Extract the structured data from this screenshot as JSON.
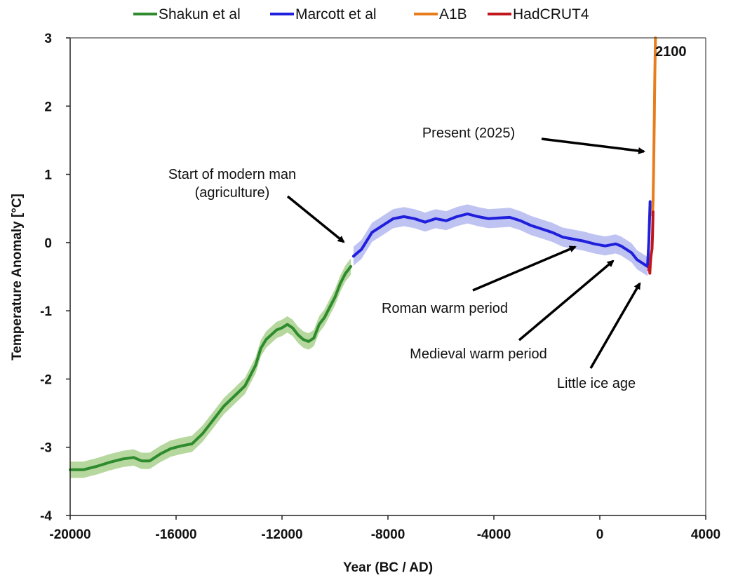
{
  "chart_data": {
    "type": "line",
    "xlabel": "Year (BC / AD)",
    "ylabel": "Temperature Anomaly [°C]",
    "xlim": [
      -20000,
      4000
    ],
    "ylim": [
      -4,
      3
    ],
    "xticks": [
      -20000,
      -16000,
      -12000,
      -8000,
      -4000,
      0,
      4000
    ],
    "yticks": [
      -4,
      -3,
      -2,
      -1,
      0,
      1,
      2,
      3
    ],
    "legend_position": "top",
    "end_label": "2100",
    "series": [
      {
        "name": "Shakun et al",
        "color": "#2e8b2e",
        "band_color": "#a9d18e",
        "uncertainty": 0.12,
        "x": [
          -20000,
          -19500,
          -19000,
          -18500,
          -18000,
          -17600,
          -17300,
          -17000,
          -16600,
          -16200,
          -15800,
          -15400,
          -15000,
          -14600,
          -14200,
          -13800,
          -13400,
          -13000,
          -12800,
          -12600,
          -12400,
          -12200,
          -12000,
          -11800,
          -11600,
          -11400,
          -11200,
          -11000,
          -10800,
          -10600,
          -10400,
          -10200,
          -10000,
          -9800,
          -9600,
          -9400
        ],
        "values": [
          -3.33,
          -3.33,
          -3.28,
          -3.22,
          -3.17,
          -3.15,
          -3.2,
          -3.2,
          -3.1,
          -3.02,
          -2.98,
          -2.95,
          -2.8,
          -2.6,
          -2.4,
          -2.25,
          -2.1,
          -1.8,
          -1.55,
          -1.42,
          -1.35,
          -1.28,
          -1.25,
          -1.2,
          -1.25,
          -1.35,
          -1.42,
          -1.45,
          -1.4,
          -1.2,
          -1.1,
          -0.95,
          -0.8,
          -0.6,
          -0.45,
          -0.35
        ]
      },
      {
        "name": "Marcott et al",
        "color": "#1f1fdc",
        "band_color": "#b4b9f0",
        "uncertainty": 0.14,
        "x": [
          -9300,
          -9000,
          -8600,
          -8200,
          -7800,
          -7400,
          -7000,
          -6600,
          -6200,
          -5800,
          -5400,
          -5000,
          -4600,
          -4200,
          -3800,
          -3400,
          -3000,
          -2600,
          -2200,
          -1800,
          -1400,
          -1000,
          -600,
          -200,
          200,
          600,
          800,
          1000,
          1200,
          1400,
          1600,
          1800,
          1850,
          1900
        ],
        "values": [
          -0.2,
          -0.1,
          0.15,
          0.25,
          0.35,
          0.38,
          0.35,
          0.3,
          0.35,
          0.32,
          0.38,
          0.42,
          0.38,
          0.35,
          0.36,
          0.37,
          0.32,
          0.25,
          0.2,
          0.15,
          0.08,
          0.05,
          0.02,
          -0.02,
          -0.05,
          -0.02,
          -0.05,
          -0.1,
          -0.15,
          -0.25,
          -0.3,
          -0.35,
          0.0,
          0.6
        ]
      },
      {
        "name": "A1B",
        "color": "#e87d1e",
        "x": [
          1990,
          2000,
          2010,
          2020,
          2030,
          2040,
          2050,
          2060,
          2070,
          2080,
          2090,
          2100
        ],
        "values": [
          0.4,
          0.5,
          0.6,
          0.85,
          1.0,
          1.3,
          1.6,
          1.9,
          2.2,
          2.5,
          2.75,
          3.0
        ]
      },
      {
        "name": "HadCRUT4",
        "color": "#c0161c",
        "x": [
          1850,
          1870,
          1890,
          1910,
          1930,
          1950,
          1970,
          1990,
          2010
        ],
        "values": [
          -0.4,
          -0.35,
          -0.45,
          -0.3,
          -0.2,
          -0.15,
          -0.1,
          0.1,
          0.45
        ]
      }
    ],
    "annotations": [
      {
        "lines": [
          "Start of modern man",
          "(agriculture)"
        ],
        "anchor": "middle",
        "from": [
          -12400,
          0.7
        ],
        "to": [
          -9400,
          0.0
        ]
      },
      {
        "lines": [
          "Present (2025)"
        ],
        "anchor": "middle",
        "from": [
          -2900,
          1.5
        ],
        "to": [
          1850,
          1.33
        ]
      },
      {
        "lines": [
          "Roman warm period"
        ],
        "anchor": "middle",
        "from": [
          -5900,
          -0.72
        ],
        "to": [
          -950,
          -0.15
        ]
      },
      {
        "lines": [
          "Medieval warm period"
        ],
        "anchor": "middle",
        "from": [
          -3400,
          -1.35
        ],
        "to": [
          900,
          -0.22
        ]
      },
      {
        "lines": [
          "Little ice age"
        ],
        "anchor": "middle",
        "from": [
          -300,
          -1.85
        ],
        "to": [
          1550,
          -0.6
        ]
      }
    ]
  }
}
